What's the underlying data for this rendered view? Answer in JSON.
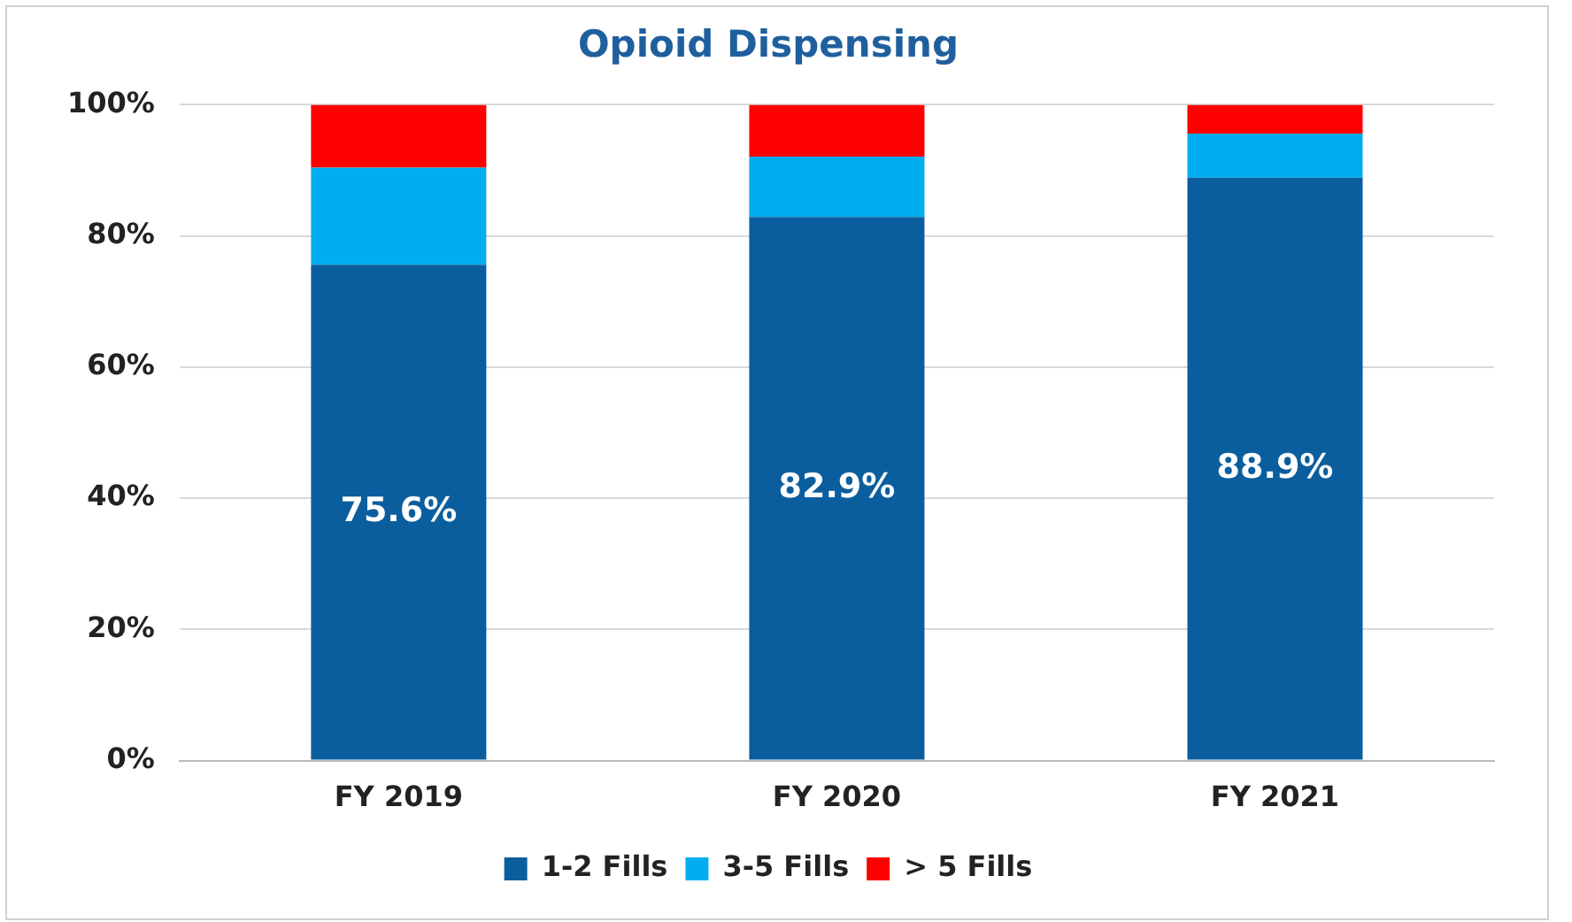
{
  "chart_data": {
    "type": "bar",
    "title": "Opioid Dispensing",
    "categories": [
      "FY 2019",
      "FY 2020",
      "FY 2021"
    ],
    "stacked": true,
    "series": [
      {
        "name": "1-2 Fills",
        "color": "#0b5e9e",
        "values": [
          75.6,
          82.9,
          88.9
        ],
        "value_labels": [
          "75.6%",
          "82.9%",
          "88.9%"
        ]
      },
      {
        "name": "3-5 Fills",
        "color": "#00aeef",
        "values": [
          14.8,
          9.2,
          6.7
        ]
      },
      {
        "name": "> 5 Fills",
        "color": "#ff0000",
        "values": [
          9.6,
          7.9,
          4.4
        ]
      }
    ],
    "ylim": [
      0,
      100
    ],
    "yticks": [
      {
        "value": 0,
        "label": "0%"
      },
      {
        "value": 20,
        "label": "20%"
      },
      {
        "value": 40,
        "label": "40%"
      },
      {
        "value": 60,
        "label": "60%"
      },
      {
        "value": 80,
        "label": "80%"
      },
      {
        "value": 100,
        "label": "100%"
      }
    ],
    "grid": "y",
    "legend": "bottom"
  }
}
